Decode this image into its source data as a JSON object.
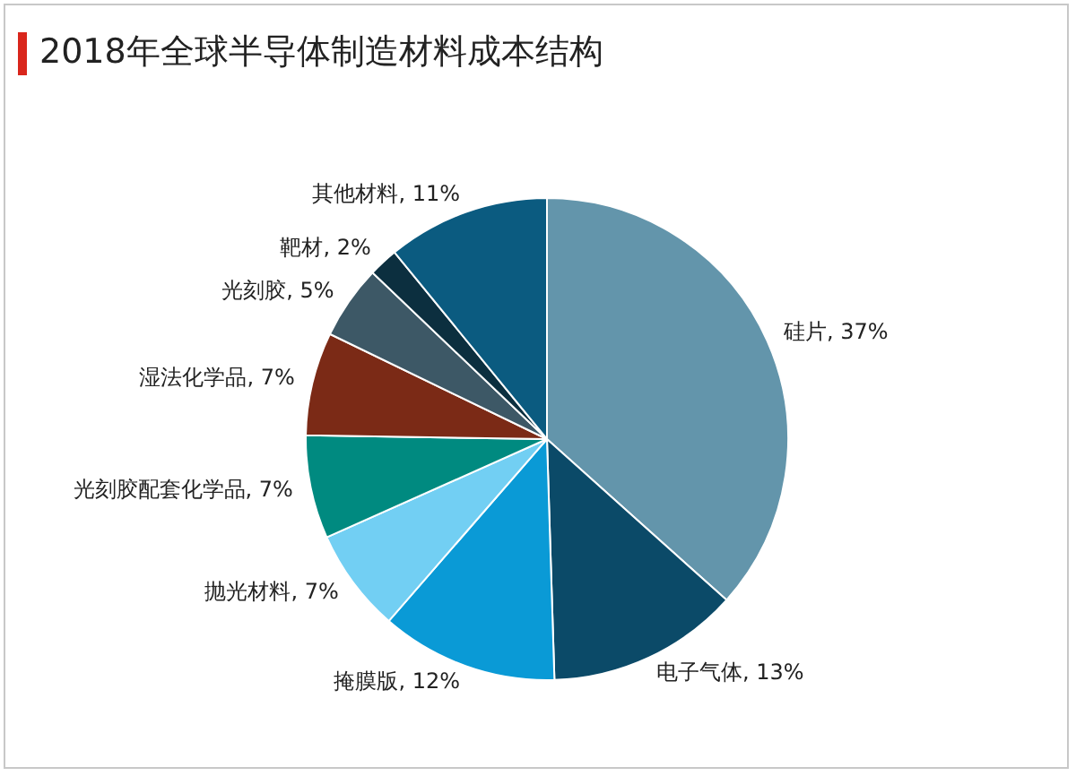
{
  "chart_data": {
    "type": "pie",
    "title": "2018年全球半导体制造材料成本结构",
    "categories": [
      "硅片",
      "电子气体",
      "掩膜版",
      "抛光材料",
      "光刻胶配套化学品",
      "湿法化学品",
      "光刻胶",
      "靶材",
      "其他材料"
    ],
    "values": [
      37,
      13,
      12,
      7,
      7,
      7,
      5,
      2,
      11
    ],
    "value_labels": [
      "37%",
      "13%",
      "12%",
      "7%",
      "7%",
      "7%",
      "5%",
      "2%",
      "11%"
    ],
    "colors": [
      "#6395ab",
      "#0b4a68",
      "#0a9ad6",
      "#72cff3",
      "#008a80",
      "#7b2a16",
      "#3d5866",
      "#0c2f3f",
      "#0b5b80"
    ],
    "legend": false
  }
}
